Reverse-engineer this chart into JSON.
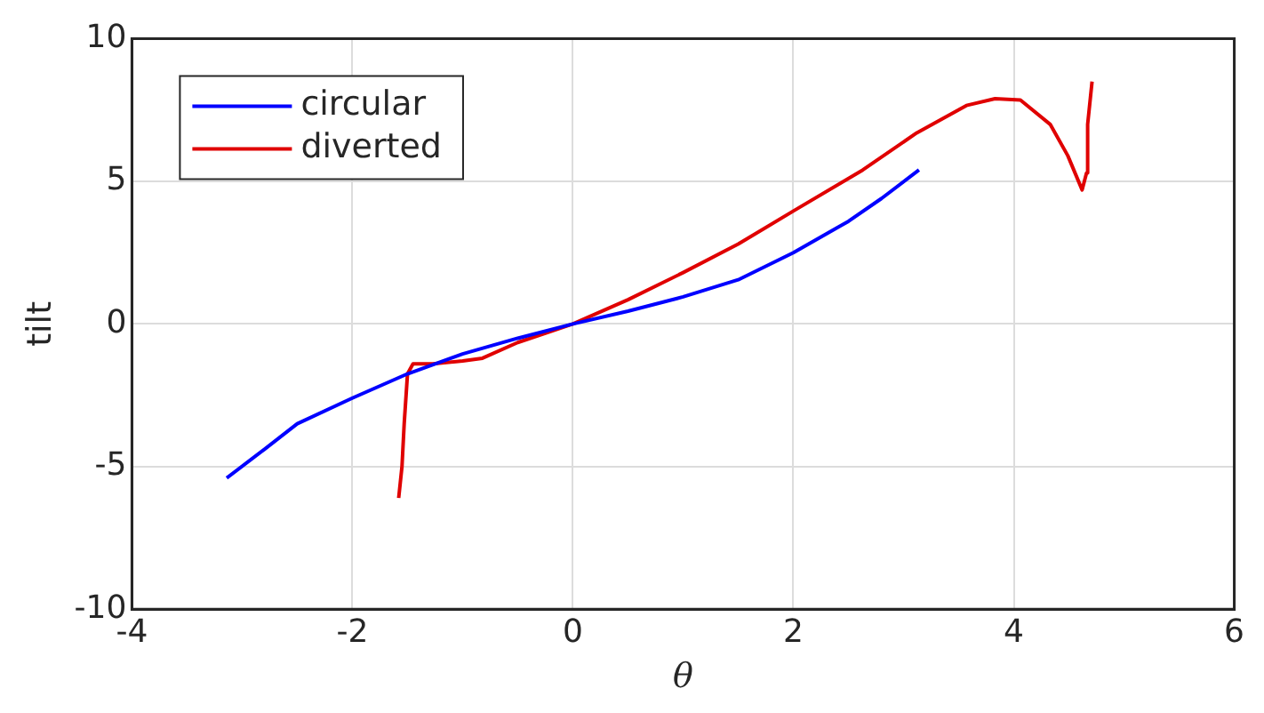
{
  "chart_data": {
    "type": "line",
    "xlabel": "θ",
    "ylabel": "tilt",
    "xlim": [
      -4,
      6
    ],
    "xticks": [
      -4,
      -2,
      0,
      2,
      4,
      6
    ],
    "ylim": [
      -10,
      10
    ],
    "yticks": [
      -10,
      -5,
      0,
      5,
      10
    ],
    "grid": true,
    "legend": "top left",
    "marker": "none",
    "line_style": "solid",
    "series": [
      {
        "name": "circular",
        "color": "#0000ff",
        "x": [
          -3.14,
          -2.8,
          -2.5,
          -2.0,
          -1.5,
          -1.0,
          -0.5,
          0,
          0.5,
          1.0,
          1.5,
          2.0,
          2.5,
          2.8,
          3.14
        ],
        "values": [
          -5.4,
          -4.4,
          -3.5,
          -2.6,
          -1.75,
          -1.05,
          -0.5,
          0,
          0.45,
          0.95,
          1.55,
          2.5,
          3.6,
          4.4,
          5.4
        ]
      },
      {
        "name": "diverted",
        "color": "#e00000",
        "x": [
          -1.58,
          -1.55,
          -1.53,
          -1.5,
          -1.45,
          -1.27,
          -1.0,
          -0.82,
          -0.5,
          0,
          0.5,
          1.0,
          1.5,
          2.0,
          2.63,
          3.12,
          3.57,
          3.83,
          4.06,
          4.33,
          4.49,
          4.62,
          4.66,
          4.67,
          4.71
        ],
        "values": [
          -6.1,
          -5.0,
          -3.5,
          -1.75,
          -1.4,
          -1.4,
          -1.3,
          -1.2,
          -0.65,
          0,
          0.85,
          1.8,
          2.8,
          3.96,
          5.4,
          6.7,
          7.66,
          7.9,
          7.85,
          7.0,
          5.9,
          4.7,
          5.3,
          7.0,
          8.5
        ]
      }
    ]
  }
}
